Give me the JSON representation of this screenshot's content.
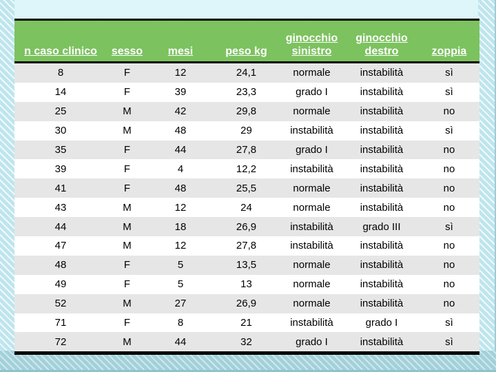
{
  "styles": {
    "header_bg": "#7cc25f",
    "header_text": "#ffffff",
    "row_alt_bg": "#e6e6e6",
    "row_bg": "#ffffff",
    "table_border": "#000000",
    "background_top": "#def5fa",
    "background_bottom": "#a7d4dc"
  },
  "chart_data": {
    "type": "table",
    "columns": [
      "n caso clinico",
      "sesso",
      "mesi",
      "peso kg",
      "ginocchio\nsinistro",
      "ginocchio\ndestro",
      "zoppia"
    ],
    "rows": [
      [
        "8",
        "F",
        "12",
        "24,1",
        "normale",
        "instabilità",
        "sì"
      ],
      [
        "14",
        "F",
        "39",
        "23,3",
        "grado I",
        "instabilità",
        "sì"
      ],
      [
        "25",
        "M",
        "42",
        "29,8",
        "normale",
        "instabilità",
        "no"
      ],
      [
        "30",
        "M",
        "48",
        "29",
        "instabilità",
        "instabilità",
        "sì"
      ],
      [
        "35",
        "F",
        "44",
        "27,8",
        "grado I",
        "instabilità",
        "no"
      ],
      [
        "39",
        "F",
        "4",
        "12,2",
        "instabilità",
        "instabilità",
        "no"
      ],
      [
        "41",
        "F",
        "48",
        "25,5",
        "normale",
        "instabilità",
        "no"
      ],
      [
        "43",
        "M",
        "12",
        "24",
        "normale",
        "instabilità",
        "no"
      ],
      [
        "44",
        "M",
        "18",
        "26,9",
        "instabilità",
        "grado III",
        "sì"
      ],
      [
        "47",
        "M",
        "12",
        "27,8",
        "instabilità",
        "instabilità",
        "no"
      ],
      [
        "48",
        "F",
        "5",
        "13,5",
        "normale",
        "instabilità",
        "no"
      ],
      [
        "49",
        "F",
        "5",
        "13",
        "normale",
        "instabilità",
        "no"
      ],
      [
        "52",
        "M",
        "27",
        "26,9",
        "normale",
        "instabilità",
        "no"
      ],
      [
        "71",
        "F",
        "8",
        "21",
        "instabilità",
        "grado I",
        "sì"
      ],
      [
        "72",
        "M",
        "44",
        "32",
        "grado I",
        "instabilità",
        "sì"
      ]
    ]
  }
}
